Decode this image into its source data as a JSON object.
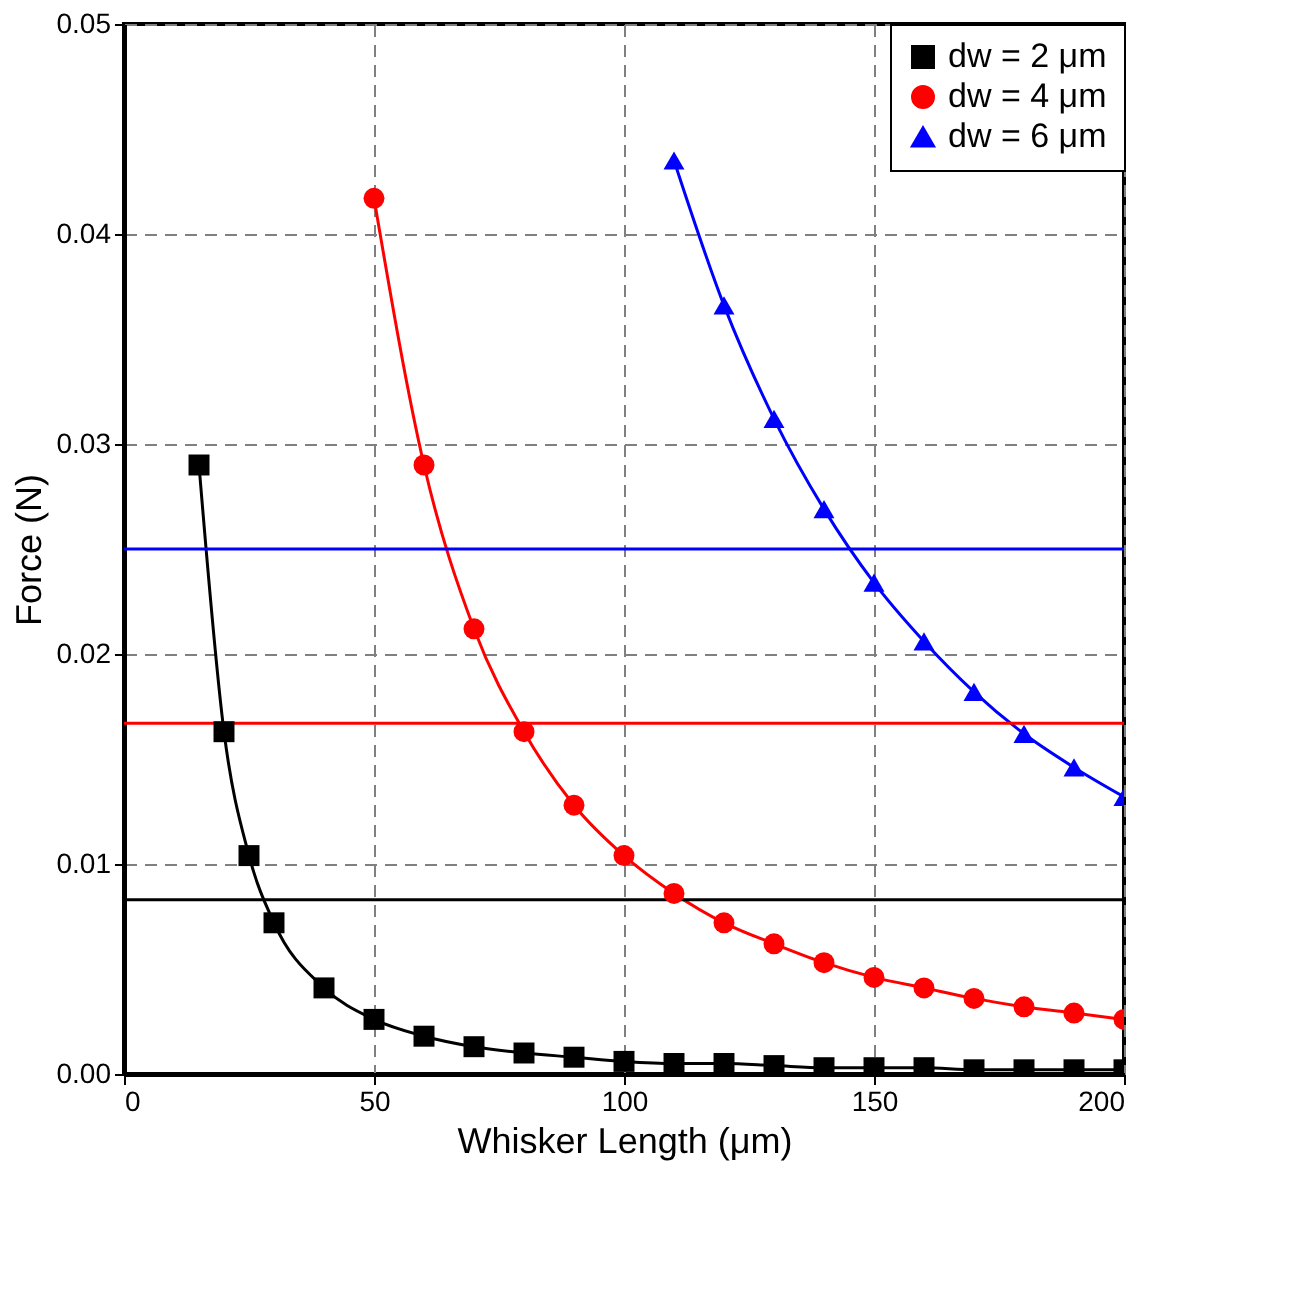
{
  "chart_data": {
    "type": "line",
    "xlabel": "Whisker Length (μm)",
    "ylabel": "Force (N)",
    "xlim": [
      0,
      200
    ],
    "xticks": [
      0,
      50,
      100,
      150,
      200
    ],
    "ylim": [
      0,
      0.05
    ],
    "yticks": [
      {
        "value": 0,
        "label": "0.00"
      },
      {
        "value": 0.01,
        "label": "0.01"
      },
      {
        "value": 0.02,
        "label": "0.02"
      },
      {
        "value": 0.03,
        "label": "0.03"
      },
      {
        "value": 0.04,
        "label": "0.04"
      },
      {
        "value": 0.05,
        "label": "0.05"
      }
    ],
    "grid": true,
    "legend": "top right",
    "series": [
      {
        "name": "dw = 2 μm",
        "color": "#000000",
        "marker": "square",
        "x": [
          15,
          20,
          25,
          30,
          40,
          50,
          60,
          70,
          80,
          90,
          100,
          110,
          120,
          130,
          140,
          150,
          160,
          170,
          180,
          190,
          200
        ],
        "values": [
          0.029,
          0.0163,
          0.0104,
          0.0072,
          0.0041,
          0.0026,
          0.0018,
          0.0013,
          0.001,
          0.0008,
          0.0006,
          0.0005,
          0.0005,
          0.0004,
          0.0003,
          0.0003,
          0.0003,
          0.0002,
          0.0002,
          0.0002,
          0.0002
        ]
      },
      {
        "name": "dw = 4 μm",
        "color": "#ff0000",
        "marker": "circle",
        "x": [
          50,
          60,
          70,
          80,
          90,
          100,
          110,
          120,
          130,
          140,
          150,
          160,
          170,
          180,
          190,
          200
        ],
        "values": [
          0.0417,
          0.029,
          0.0212,
          0.0163,
          0.0128,
          0.0104,
          0.0086,
          0.0072,
          0.0062,
          0.0053,
          0.0046,
          0.0041,
          0.0036,
          0.0032,
          0.0029,
          0.0026
        ]
      },
      {
        "name": "dw = 6 μm",
        "color": "#0000ff",
        "marker": "triangle",
        "x": [
          110,
          120,
          130,
          140,
          150,
          160,
          170,
          180,
          190,
          200
        ],
        "values": [
          0.0435,
          0.0366,
          0.0312,
          0.0269,
          0.0234,
          0.0206,
          0.0182,
          0.0162,
          0.0146,
          0.0132
        ]
      }
    ],
    "ref_lines": [
      {
        "axis": "y",
        "value": 0.0083,
        "color": "#000000"
      },
      {
        "axis": "y",
        "value": 0.0167,
        "color": "#ff0000"
      },
      {
        "axis": "y",
        "value": 0.025,
        "color": "#0000ff"
      }
    ]
  }
}
